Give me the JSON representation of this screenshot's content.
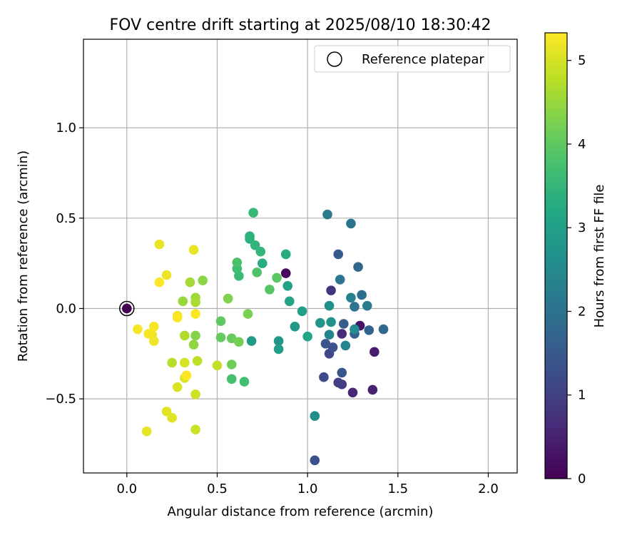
{
  "chart_data": {
    "type": "scatter",
    "title": "FOV centre drift starting at 2025/08/10 18:30:42",
    "xlabel": "Angular distance from reference (arcmin)",
    "ylabel": "Rotation from reference (arcmin)",
    "xlim": [
      -0.24,
      2.16
    ],
    "ylim": [
      -0.91,
      1.49
    ],
    "xticks": [
      0.0,
      0.5,
      1.0,
      1.5,
      2.0
    ],
    "xtick_labels": [
      "0.0",
      "0.5",
      "1.0",
      "1.5",
      "2.0"
    ],
    "yticks": [
      -0.5,
      0.0,
      0.5,
      1.0
    ],
    "ytick_labels": [
      "−0.5",
      "0.0",
      "0.5",
      "1.0"
    ],
    "grid": true,
    "legend": {
      "position": "top-right",
      "entries": [
        "Reference platepar"
      ]
    },
    "colorbar": {
      "label": "Hours from first FF file",
      "min": 0,
      "max": 5.33,
      "ticks": [
        0,
        1,
        2,
        3,
        4,
        5
      ],
      "tick_labels": [
        "0",
        "1",
        "2",
        "3",
        "4",
        "5"
      ],
      "colormap": "viridis"
    },
    "reference_point": {
      "x": 0.0,
      "y": 0.0
    },
    "points": [
      {
        "x": 0.0,
        "y": 0.0,
        "c": 0.0
      },
      {
        "x": 0.88,
        "y": 0.195,
        "c": 0.1
      },
      {
        "x": 1.29,
        "y": -0.095,
        "c": 0.3
      },
      {
        "x": 1.37,
        "y": -0.24,
        "c": 0.4
      },
      {
        "x": 1.36,
        "y": -0.45,
        "c": 0.5
      },
      {
        "x": 1.25,
        "y": -0.465,
        "c": 0.6
      },
      {
        "x": 1.19,
        "y": -0.14,
        "c": 0.7
      },
      {
        "x": 1.13,
        "y": 0.1,
        "c": 0.8
      },
      {
        "x": 1.19,
        "y": -0.42,
        "c": 0.9
      },
      {
        "x": 1.17,
        "y": -0.41,
        "c": 1.0
      },
      {
        "x": 1.12,
        "y": -0.25,
        "c": 1.1
      },
      {
        "x": 1.09,
        "y": -0.38,
        "c": 1.2
      },
      {
        "x": 1.04,
        "y": -0.84,
        "c": 1.3
      },
      {
        "x": 1.14,
        "y": -0.215,
        "c": 1.35
      },
      {
        "x": 1.1,
        "y": -0.195,
        "c": 1.4
      },
      {
        "x": 1.19,
        "y": -0.355,
        "c": 1.45
      },
      {
        "x": 1.17,
        "y": 0.3,
        "c": 1.5
      },
      {
        "x": 1.2,
        "y": -0.085,
        "c": 1.55
      },
      {
        "x": 1.26,
        "y": -0.14,
        "c": 1.6
      },
      {
        "x": 1.34,
        "y": -0.12,
        "c": 1.7
      },
      {
        "x": 1.28,
        "y": 0.23,
        "c": 1.75
      },
      {
        "x": 1.42,
        "y": -0.115,
        "c": 1.8
      },
      {
        "x": 1.3,
        "y": 0.075,
        "c": 1.9
      },
      {
        "x": 1.26,
        "y": 0.01,
        "c": 2.0
      },
      {
        "x": 1.24,
        "y": 0.47,
        "c": 2.05
      },
      {
        "x": 1.18,
        "y": 0.16,
        "c": 2.1
      },
      {
        "x": 1.11,
        "y": 0.52,
        "c": 2.15
      },
      {
        "x": 1.33,
        "y": 0.015,
        "c": 2.2
      },
      {
        "x": 1.24,
        "y": 0.06,
        "c": 2.3
      },
      {
        "x": 1.12,
        "y": -0.145,
        "c": 2.4
      },
      {
        "x": 1.21,
        "y": -0.205,
        "c": 2.45
      },
      {
        "x": 1.26,
        "y": -0.115,
        "c": 2.55
      },
      {
        "x": 1.04,
        "y": -0.595,
        "c": 2.6
      },
      {
        "x": 1.12,
        "y": 0.015,
        "c": 2.65
      },
      {
        "x": 1.13,
        "y": -0.075,
        "c": 2.7
      },
      {
        "x": 1.07,
        "y": -0.08,
        "c": 2.75
      },
      {
        "x": 0.84,
        "y": -0.18,
        "c": 2.8
      },
      {
        "x": 0.93,
        "y": -0.1,
        "c": 2.85
      },
      {
        "x": 0.69,
        "y": -0.18,
        "c": 2.9
      },
      {
        "x": 0.84,
        "y": -0.225,
        "c": 2.95
      },
      {
        "x": 0.97,
        "y": -0.015,
        "c": 3.0
      },
      {
        "x": 0.89,
        "y": 0.125,
        "c": 3.05
      },
      {
        "x": 0.9,
        "y": 0.04,
        "c": 3.1
      },
      {
        "x": 1.0,
        "y": -0.155,
        "c": 3.15
      },
      {
        "x": 0.88,
        "y": 0.3,
        "c": 3.25
      },
      {
        "x": 0.75,
        "y": 0.25,
        "c": 3.3
      },
      {
        "x": 0.68,
        "y": 0.385,
        "c": 3.35
      },
      {
        "x": 0.68,
        "y": 0.4,
        "c": 3.4
      },
      {
        "x": 0.71,
        "y": 0.35,
        "c": 3.45
      },
      {
        "x": 0.74,
        "y": 0.315,
        "c": 3.5
      },
      {
        "x": 0.7,
        "y": 0.53,
        "c": 3.55
      },
      {
        "x": 0.62,
        "y": 0.18,
        "c": 3.6
      },
      {
        "x": 0.61,
        "y": 0.22,
        "c": 3.65
      },
      {
        "x": 0.65,
        "y": -0.405,
        "c": 3.7
      },
      {
        "x": 0.58,
        "y": -0.39,
        "c": 3.75
      },
      {
        "x": 0.61,
        "y": 0.255,
        "c": 3.8
      },
      {
        "x": 0.72,
        "y": 0.2,
        "c": 3.85
      },
      {
        "x": 0.79,
        "y": 0.105,
        "c": 3.9
      },
      {
        "x": 0.83,
        "y": 0.17,
        "c": 3.95
      },
      {
        "x": 0.52,
        "y": -0.07,
        "c": 4.0
      },
      {
        "x": 0.52,
        "y": -0.16,
        "c": 4.05
      },
      {
        "x": 0.58,
        "y": -0.165,
        "c": 4.1
      },
      {
        "x": 0.58,
        "y": -0.31,
        "c": 4.15
      },
      {
        "x": 0.62,
        "y": -0.185,
        "c": 4.2
      },
      {
        "x": 0.67,
        "y": -0.03,
        "c": 4.25
      },
      {
        "x": 0.56,
        "y": 0.055,
        "c": 4.3
      },
      {
        "x": 0.38,
        "y": -0.15,
        "c": 4.35
      },
      {
        "x": 0.42,
        "y": 0.155,
        "c": 4.4
      },
      {
        "x": 0.37,
        "y": -0.2,
        "c": 4.45
      },
      {
        "x": 0.31,
        "y": 0.04,
        "c": 4.5
      },
      {
        "x": 0.38,
        "y": 0.06,
        "c": 4.55
      },
      {
        "x": 0.35,
        "y": 0.145,
        "c": 4.6
      },
      {
        "x": 0.38,
        "y": 0.035,
        "c": 4.65
      },
      {
        "x": 0.32,
        "y": -0.15,
        "c": 4.7
      },
      {
        "x": 0.25,
        "y": -0.3,
        "c": 4.75
      },
      {
        "x": 0.39,
        "y": -0.29,
        "c": 4.8
      },
      {
        "x": 0.5,
        "y": -0.315,
        "c": 4.85
      },
      {
        "x": 0.38,
        "y": -0.67,
        "c": 4.9
      },
      {
        "x": 0.38,
        "y": -0.475,
        "c": 4.95
      },
      {
        "x": 0.32,
        "y": -0.3,
        "c": 5.0
      },
      {
        "x": 0.28,
        "y": -0.435,
        "c": 5.05
      },
      {
        "x": 0.32,
        "y": -0.385,
        "c": 5.05
      },
      {
        "x": 0.25,
        "y": -0.605,
        "c": 5.1
      },
      {
        "x": 0.22,
        "y": -0.57,
        "c": 5.1
      },
      {
        "x": 0.11,
        "y": -0.68,
        "c": 5.12
      },
      {
        "x": 0.37,
        "y": 0.325,
        "c": 5.15
      },
      {
        "x": 0.18,
        "y": 0.355,
        "c": 5.15
      },
      {
        "x": 0.22,
        "y": 0.185,
        "c": 5.18
      },
      {
        "x": 0.28,
        "y": -0.04,
        "c": 5.2
      },
      {
        "x": 0.15,
        "y": -0.18,
        "c": 5.2
      },
      {
        "x": 0.14,
        "y": -0.145,
        "c": 5.22
      },
      {
        "x": 0.12,
        "y": -0.14,
        "c": 5.25
      },
      {
        "x": 0.06,
        "y": -0.115,
        "c": 5.27
      },
      {
        "x": 0.15,
        "y": -0.1,
        "c": 5.28
      },
      {
        "x": 0.28,
        "y": -0.05,
        "c": 5.3
      },
      {
        "x": 0.18,
        "y": 0.145,
        "c": 5.31
      },
      {
        "x": 0.33,
        "y": -0.37,
        "c": 5.32
      },
      {
        "x": 0.38,
        "y": -0.03,
        "c": 5.33
      }
    ]
  }
}
